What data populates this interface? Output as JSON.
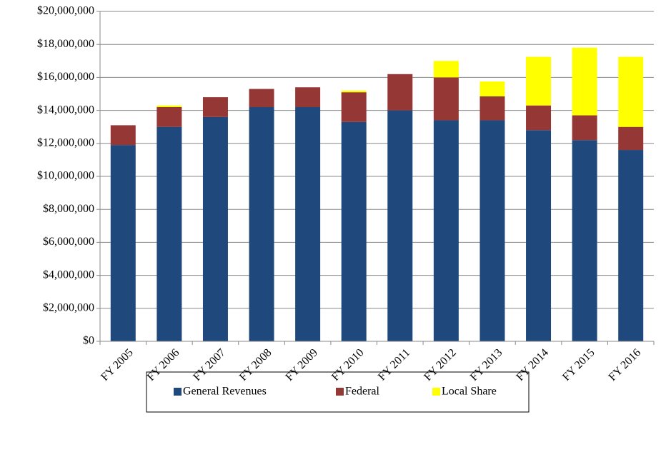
{
  "chart_data": {
    "type": "stacked_bar",
    "categories": [
      "FY 2005",
      "FY 2006",
      "FY 2007",
      "FY 2008",
      "FY 2009",
      "FY 2010",
      "FY 2011",
      "FY 2012",
      "FY 2013",
      "FY 2014",
      "FY 2015",
      "FY 2016"
    ],
    "series": [
      {
        "name": "General Revenues",
        "color": "#1f497d",
        "values": [
          11900000,
          13000000,
          13600000,
          14200000,
          14200000,
          13300000,
          14000000,
          13400000,
          13400000,
          12800000,
          12200000,
          11600000
        ]
      },
      {
        "name": "Federal",
        "color": "#953735",
        "values": [
          1200000,
          1200000,
          1200000,
          1100000,
          1200000,
          1800000,
          2200000,
          2600000,
          1450000,
          1500000,
          1500000,
          1400000
        ]
      },
      {
        "name": "Local Share",
        "color": "#ffff00",
        "values": [
          0,
          100000,
          0,
          0,
          0,
          100000,
          0,
          1000000,
          900000,
          2950000,
          4100000,
          4250000
        ]
      }
    ],
    "ylim": [
      0,
      20000000
    ],
    "yticks": [
      {
        "value": 0,
        "label": "$0"
      },
      {
        "value": 2000000,
        "label": "$2,000,000"
      },
      {
        "value": 4000000,
        "label": "$4,000,000"
      },
      {
        "value": 6000000,
        "label": "$6,000,000"
      },
      {
        "value": 8000000,
        "label": "$8,000,000"
      },
      {
        "value": 10000000,
        "label": "$10,000,000"
      },
      {
        "value": 12000000,
        "label": "$12,000,000"
      },
      {
        "value": 14000000,
        "label": "$14,000,000"
      },
      {
        "value": 16000000,
        "label": "$16,000,000"
      },
      {
        "value": 18000000,
        "label": "$18,000,000"
      },
      {
        "value": 20000000,
        "label": "$20,000,000"
      }
    ],
    "grid": true,
    "legend": "bottom"
  }
}
